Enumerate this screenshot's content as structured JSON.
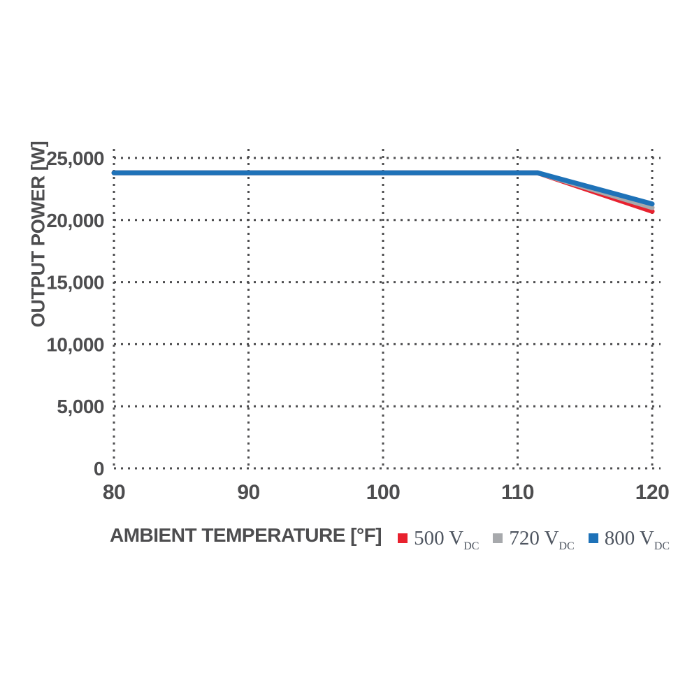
{
  "chart_data": {
    "type": "line",
    "title": "",
    "xlabel": "AMBIENT TEMPERATURE [°F]",
    "ylabel": "OUTPUT POWER [W]",
    "xlim": [
      80,
      120
    ],
    "ylim": [
      0,
      25000
    ],
    "grid": "dotted",
    "legend_position": "bottom-right",
    "x_ticks": [
      {
        "v": 80,
        "label": "80"
      },
      {
        "v": 90,
        "label": "90"
      },
      {
        "v": 100,
        "label": "100"
      },
      {
        "v": 110,
        "label": "110"
      },
      {
        "v": 120,
        "label": "120"
      }
    ],
    "y_ticks": [
      {
        "v": 0,
        "label": "0"
      },
      {
        "v": 5000,
        "label": "5,000"
      },
      {
        "v": 10000,
        "label": "10,000"
      },
      {
        "v": 15000,
        "label": "15,000"
      },
      {
        "v": 20000,
        "label": "20,000"
      },
      {
        "v": 25000,
        "label": "25,000"
      }
    ],
    "series": [
      {
        "name": "500 VDC",
        "color": "#e8212e",
        "points": [
          [
            80,
            23800
          ],
          [
            111.5,
            23800
          ],
          [
            120,
            20700
          ]
        ]
      },
      {
        "name": "720 VDC",
        "color": "#a7a9ac",
        "points": [
          [
            80,
            23800
          ],
          [
            111.5,
            23800
          ],
          [
            120,
            21000
          ]
        ]
      },
      {
        "name": "800 VDC",
        "color": "#1e72b8",
        "points": [
          [
            80,
            23800
          ],
          [
            111.5,
            23800
          ],
          [
            120,
            21300
          ]
        ]
      }
    ]
  },
  "axes": {
    "x_title": "AMBIENT TEMPERATURE [°F]",
    "y_title": "OUTPUT POWER [W]"
  },
  "legend": {
    "items": [
      {
        "label": "500 V",
        "sub": "DC",
        "color": "#e8212e"
      },
      {
        "label": "720 V",
        "sub": "DC",
        "color": "#a7a9ac"
      },
      {
        "label": "800 V",
        "sub": "DC",
        "color": "#1e72b8"
      }
    ]
  },
  "colors": {
    "text": "#4d4d4f",
    "grid": "#4d4d4f",
    "background": "#ffffff"
  }
}
